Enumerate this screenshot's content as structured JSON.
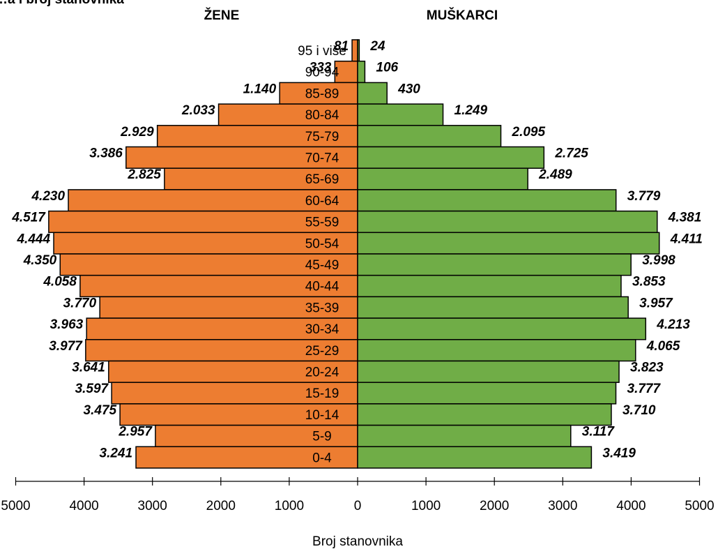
{
  "chart_data": {
    "type": "bar",
    "title": "…a i broj stanovnika",
    "left_title": "ŽENE",
    "right_title": "MUŠKARCI",
    "xlabel": "Broj stanovnika",
    "x_ticks": [
      "5000",
      "4000",
      "3000",
      "2000",
      "1000",
      "0",
      "1000",
      "2000",
      "3000",
      "4000",
      "5000"
    ],
    "xlim": [
      -5000,
      5000
    ],
    "categories": [
      "95 i više",
      "90-94",
      "85-89",
      "80-84",
      "75-79",
      "70-74",
      "65-69",
      "60-64",
      "55-59",
      "50-54",
      "45-49",
      "40-44",
      "35-39",
      "30-34",
      "25-29",
      "20-24",
      "15-19",
      "10-14",
      "5-9",
      "0-4"
    ],
    "series": [
      {
        "name": "ŽENE",
        "color": "#ED7D31",
        "side": "left",
        "values": [
          81,
          333,
          1140,
          2033,
          2929,
          3386,
          2825,
          4230,
          4517,
          4444,
          4350,
          4058,
          3770,
          3963,
          3977,
          3641,
          3597,
          3475,
          2957,
          3241
        ],
        "labels": [
          "81",
          "333",
          "1.140",
          "2.033",
          "2.929",
          "3.386",
          "2.825",
          "4.230",
          "4.517",
          "4.444",
          "4.350",
          "4.058",
          "3.770",
          "3.963",
          "3.977",
          "3.641",
          "3.597",
          "3.475",
          "2.957",
          "3.241"
        ]
      },
      {
        "name": "MUŠKARCI",
        "color": "#70AD47",
        "side": "right",
        "values": [
          24,
          106,
          430,
          1249,
          2095,
          2725,
          2489,
          3779,
          4381,
          4411,
          3998,
          3853,
          3957,
          4213,
          4065,
          3823,
          3777,
          3710,
          3117,
          3419
        ],
        "labels": [
          "24",
          "106",
          "430",
          "1.249",
          "2.095",
          "2.725",
          "2.489",
          "3.779",
          "4.381",
          "4.411",
          "3.998",
          "3.853",
          "3.957",
          "4.213",
          "4.065",
          "3.823",
          "3.777",
          "3.710",
          "3.117",
          "3.419"
        ]
      }
    ],
    "grid": false,
    "legend": "none"
  }
}
